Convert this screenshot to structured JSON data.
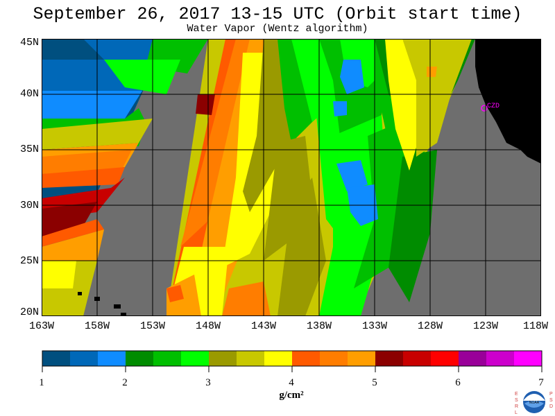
{
  "title": "September 26, 2017  13-15 UTC  (Orbit start time)",
  "subtitle": "Water Vapor (Wentz algorithm)",
  "map": {
    "latitude_labels": [
      "45N",
      "40N",
      "35N",
      "30N",
      "25N",
      "20N"
    ],
    "longitude_labels": [
      "163W",
      "158W",
      "153W",
      "148W",
      "143W",
      "138W",
      "133W",
      "128W",
      "123W",
      "118W"
    ],
    "station_label": "CZD",
    "colors": {
      "no_data": "#6e6e6e",
      "land": "#000000",
      "station": "#ff00ff",
      "grid": "#000000"
    }
  },
  "colorbar": {
    "ticks": [
      "1",
      "2",
      "3",
      "4",
      "5",
      "6",
      "7"
    ],
    "unit": "g/cm²",
    "colors": [
      "#004f7f",
      "#0068b8",
      "#0f8cff",
      "#008c00",
      "#00bf00",
      "#00ff00",
      "#9a9a00",
      "#c8c800",
      "#ffff00",
      "#ff5a00",
      "#ff7d00",
      "#ff9e00",
      "#8b0000",
      "#c80000",
      "#ff0000",
      "#990099",
      "#cc00cc",
      "#ff00ff"
    ]
  },
  "logo": {
    "left_text": "ESRL",
    "right_text": "PSD",
    "center_text": "NOAA"
  }
}
